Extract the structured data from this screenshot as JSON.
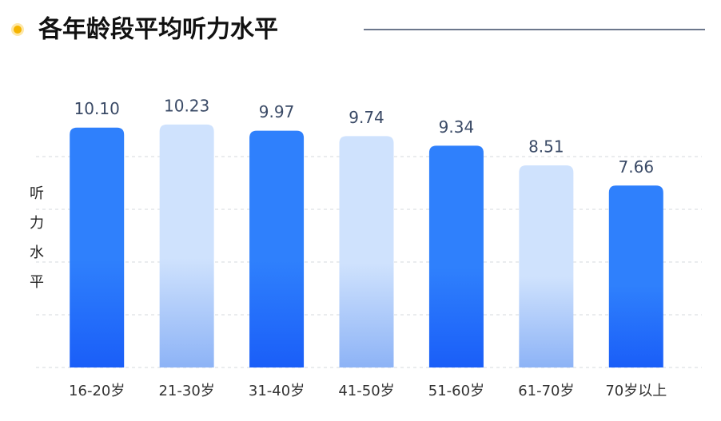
{
  "chart_data": {
    "type": "bar",
    "title": "各年龄段平均听力水平",
    "y_label": "听力水平",
    "categories": [
      "16-20岁",
      "21-30岁",
      "31-40岁",
      "41-50岁",
      "51-60岁",
      "61-70岁",
      "70岁以上"
    ],
    "values": [
      10.1,
      10.23,
      9.97,
      9.74,
      9.34,
      8.51,
      7.66
    ],
    "value_labels": [
      "10.10",
      "10.23",
      "9.97",
      "9.74",
      "9.34",
      "8.51",
      "7.66"
    ],
    "colors": [
      [
        "#2f80fc",
        "#1a5ef8"
      ],
      [
        "#cfe2fd",
        "#8db3f6"
      ],
      [
        "#2f80fc",
        "#1a5ef8"
      ],
      [
        "#cfe2fd",
        "#8db3f6"
      ],
      [
        "#2f80fc",
        "#1a5ef8"
      ],
      [
        "#cfe2fd",
        "#8db3f6"
      ],
      [
        "#2f80fc",
        "#1a5ef8"
      ]
    ],
    "ylim": [
      0,
      11.1
    ],
    "grid": true
  }
}
